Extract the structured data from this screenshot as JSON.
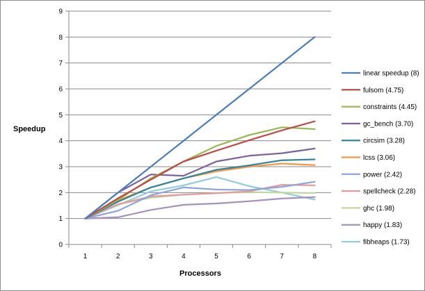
{
  "chart_data": {
    "type": "line",
    "title": "",
    "xlabel": "Processors",
    "ylabel": "Speedup",
    "x": [
      1,
      2,
      3,
      4,
      5,
      6,
      7,
      8
    ],
    "xlim": [
      1,
      8
    ],
    "ylim": [
      0,
      9
    ],
    "yticks": [
      0,
      1,
      2,
      3,
      4,
      5,
      6,
      7,
      8,
      9
    ],
    "xticks": [
      1,
      2,
      3,
      4,
      5,
      6,
      7,
      8
    ],
    "grid": "horizontal",
    "legend": "right",
    "series": [
      {
        "name": "linear speedup (8)",
        "color": "#4a7ebb",
        "values": [
          1,
          2,
          3,
          4,
          5,
          6,
          7,
          8
        ]
      },
      {
        "name": "fulsom (4.75)",
        "color": "#be4b48",
        "values": [
          1,
          1.78,
          2.5,
          3.2,
          3.62,
          4.02,
          4.4,
          4.75
        ]
      },
      {
        "name": "constraints (4.45)",
        "color": "#98b954",
        "values": [
          1,
          1.72,
          2.55,
          3.2,
          3.8,
          4.22,
          4.52,
          4.45
        ]
      },
      {
        "name": "gc_bench (3.70)",
        "color": "#7d60a0",
        "values": [
          1,
          2.0,
          2.7,
          2.65,
          3.2,
          3.42,
          3.52,
          3.7
        ]
      },
      {
        "name": "circsim (3.28)",
        "color": "#31859c",
        "values": [
          1,
          1.65,
          2.2,
          2.55,
          2.88,
          3.05,
          3.25,
          3.28
        ]
      },
      {
        "name": "lcss (3.06)",
        "color": "#f79646",
        "values": [
          1,
          1.7,
          2.2,
          2.55,
          2.82,
          3.0,
          3.12,
          3.06
        ]
      },
      {
        "name": "power (2.42)",
        "color": "#8ea5db",
        "values": [
          1,
          1.3,
          1.9,
          2.2,
          2.12,
          2.1,
          2.22,
          2.42
        ]
      },
      {
        "name": "spellcheck (2.28)",
        "color": "#e69b9b",
        "values": [
          1,
          1.55,
          1.85,
          1.92,
          1.98,
          2.05,
          2.3,
          2.28
        ]
      },
      {
        "name": "ghc (1.98)",
        "color": "#c3d69b",
        "values": [
          1,
          1.55,
          1.8,
          1.92,
          1.98,
          2.02,
          2.0,
          1.98
        ]
      },
      {
        "name": "happy (1.83)",
        "color": "#a491be",
        "values": [
          1,
          1.05,
          1.33,
          1.53,
          1.58,
          1.67,
          1.77,
          1.83
        ]
      },
      {
        "name": "fibheaps (1.73)",
        "color": "#93cddd",
        "values": [
          1,
          1.52,
          2.05,
          2.28,
          2.6,
          2.25,
          2.0,
          1.73
        ]
      }
    ]
  }
}
